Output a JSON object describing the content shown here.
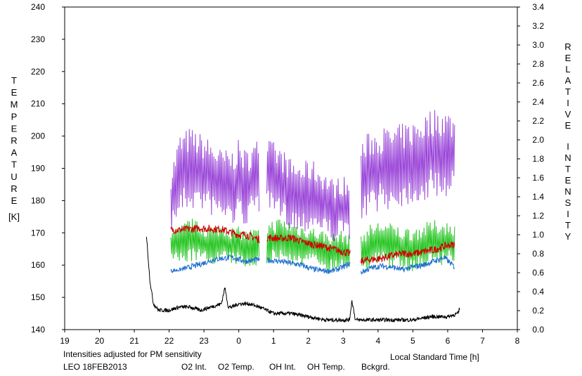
{
  "chart_data": {
    "type": "line",
    "xlabel": "Local Standard Time [h]",
    "x_ticks": [
      "19",
      "20",
      "21",
      "22",
      "23",
      "0",
      "1",
      "2",
      "3",
      "4",
      "5",
      "6",
      "7",
      "8"
    ],
    "xlim": [
      19,
      32
    ],
    "y_left": {
      "label_letters": [
        "T",
        "E",
        "M",
        "P",
        "E",
        "R",
        "A",
        "T",
        "U",
        "R",
        "E"
      ],
      "unit": "[K]",
      "ticks": [
        "140",
        "150",
        "160",
        "170",
        "180",
        "190",
        "200",
        "210",
        "220",
        "230",
        "240"
      ],
      "lim": [
        140,
        240
      ]
    },
    "y_right": {
      "label_letters_1": [
        "R",
        "E",
        "L",
        "A",
        "T",
        "I",
        "V",
        "E"
      ],
      "label_letters_2": [
        "I",
        "N",
        "T",
        "E",
        "N",
        "S",
        "I",
        "T",
        "Y"
      ],
      "ticks": [
        "0.0",
        "0.2",
        "0.4",
        "0.6",
        "0.8",
        "1.0",
        "1.2",
        "1.4",
        "1.6",
        "1.8",
        "2.0",
        "2.2",
        "2.4",
        "2.6",
        "2.8",
        "3.0",
        "3.2",
        "3.4"
      ],
      "lim": [
        0,
        3.4
      ]
    },
    "note": "Intensities adjusted for PM sensitivity",
    "station": "LEO 18FEB2013",
    "legend": [
      "O2 Int.",
      "O2 Temp.",
      "OH Int.",
      "OH Temp.",
      "Bckgrd."
    ],
    "colors": {
      "o2_int": "#1f6fd0",
      "o2_temp": "#9a45d8",
      "oh_int": "#d00000",
      "oh_temp": "#22c41e",
      "bckgrd": "#000000",
      "note": "#22c41e"
    },
    "gaps_hours": [
      [
        24.6,
        24.8
      ],
      [
        27.2,
        27.5
      ]
    ],
    "series": [
      {
        "key": "o2_temp",
        "axis": "left",
        "x": [
          22.05,
          22.3,
          22.6,
          22.9,
          23.2,
          23.5,
          23.8,
          24.0,
          24.2,
          24.6,
          24.9,
          25.2,
          25.5,
          25.8,
          26.1,
          26.4,
          26.7,
          27.0,
          27.2,
          27.5,
          27.8,
          28.1,
          28.4,
          28.7,
          29.0,
          29.3,
          29.6,
          29.9,
          30.2
        ],
        "mean": [
          180,
          188,
          190,
          189,
          187,
          185,
          184,
          186,
          184,
          188,
          187,
          185,
          182,
          181,
          182,
          180,
          177,
          178,
          177,
          185,
          189,
          190,
          190,
          191,
          192,
          193,
          195,
          195,
          194
        ],
        "amp": [
          10,
          13,
          13,
          12,
          12,
          11,
          12,
          13,
          12,
          12,
          12,
          12,
          11,
          11,
          11,
          10,
          10,
          10,
          9,
          14,
          13,
          13,
          13,
          13,
          13,
          14,
          14,
          14,
          13
        ]
      },
      {
        "key": "oh_temp",
        "axis": "left",
        "x": [
          22.05,
          22.3,
          22.6,
          22.9,
          23.2,
          23.5,
          23.8,
          24.0,
          24.2,
          24.6,
          24.9,
          25.2,
          25.5,
          25.8,
          26.1,
          26.4,
          26.7,
          27.0,
          27.2,
          27.5,
          27.8,
          28.1,
          28.4,
          28.7,
          29.0,
          29.3,
          29.6,
          29.9,
          30.2
        ],
        "mean": [
          166,
          166,
          168,
          167,
          166,
          167,
          166,
          166,
          165,
          166,
          167,
          168,
          167,
          166,
          166,
          165,
          164,
          165,
          164,
          164,
          166,
          167,
          166,
          165,
          165,
          166,
          167,
          167,
          167
        ],
        "amp": [
          5,
          6,
          7,
          6,
          6,
          6,
          6,
          6,
          6,
          6,
          7,
          7,
          7,
          7,
          6,
          6,
          6,
          6,
          5,
          6,
          7,
          7,
          7,
          7,
          7,
          7,
          7,
          7,
          6
        ]
      },
      {
        "key": "oh_int",
        "axis": "right",
        "x": [
          22.05,
          22.3,
          22.6,
          22.9,
          23.2,
          23.5,
          23.8,
          24.0,
          24.2,
          24.6,
          24.9,
          25.2,
          25.5,
          25.8,
          26.1,
          26.4,
          26.7,
          27.0,
          27.2,
          27.5,
          27.8,
          28.1,
          28.4,
          28.7,
          29.0,
          29.3,
          29.6,
          29.9,
          30.2
        ],
        "mean": [
          1.05,
          1.05,
          1.06,
          1.07,
          1.06,
          1.06,
          1.02,
          1.0,
          1.0,
          0.95,
          0.97,
          0.96,
          0.97,
          0.93,
          0.9,
          0.88,
          0.85,
          0.82,
          0.8,
          0.72,
          0.74,
          0.75,
          0.78,
          0.8,
          0.8,
          0.82,
          0.84,
          0.88,
          0.9
        ],
        "amp": [
          0.04,
          0.04,
          0.04,
          0.04,
          0.04,
          0.04,
          0.04,
          0.04,
          0.04,
          0.04,
          0.04,
          0.04,
          0.04,
          0.04,
          0.04,
          0.04,
          0.04,
          0.04,
          0.04,
          0.04,
          0.04,
          0.04,
          0.04,
          0.04,
          0.04,
          0.04,
          0.04,
          0.04,
          0.04
        ]
      },
      {
        "key": "o2_int",
        "axis": "right",
        "x": [
          22.05,
          22.3,
          22.6,
          22.9,
          23.2,
          23.5,
          23.8,
          24.0,
          24.2,
          24.6,
          24.9,
          25.2,
          25.5,
          25.8,
          26.1,
          26.4,
          26.7,
          27.0,
          27.2,
          27.5,
          27.8,
          28.1,
          28.4,
          28.7,
          29.0,
          29.3,
          29.6,
          29.9,
          30.2
        ],
        "mean": [
          0.62,
          0.63,
          0.66,
          0.69,
          0.73,
          0.75,
          0.76,
          0.74,
          0.72,
          0.74,
          0.73,
          0.72,
          0.7,
          0.68,
          0.64,
          0.62,
          0.62,
          0.66,
          0.7,
          0.6,
          0.65,
          0.67,
          0.66,
          0.63,
          0.66,
          0.68,
          0.72,
          0.76,
          0.66
        ],
        "amp": [
          0.02,
          0.02,
          0.03,
          0.03,
          0.03,
          0.03,
          0.03,
          0.03,
          0.03,
          0.03,
          0.03,
          0.03,
          0.03,
          0.03,
          0.03,
          0.03,
          0.03,
          0.03,
          0.03,
          0.03,
          0.03,
          0.03,
          0.03,
          0.03,
          0.03,
          0.03,
          0.03,
          0.03,
          0.03
        ]
      },
      {
        "key": "bckgrd",
        "axis": "left",
        "x": [
          21.35,
          21.45,
          21.55,
          21.7,
          22.0,
          22.3,
          22.6,
          22.9,
          23.2,
          23.5,
          23.6,
          23.7,
          23.8,
          24.0,
          24.3,
          24.6,
          25.0,
          25.5,
          26.0,
          26.5,
          27.0,
          27.18,
          27.25,
          27.35,
          27.7,
          28.0,
          28.5,
          29.0,
          29.5,
          30.0,
          30.3,
          30.35
        ],
        "y": [
          169,
          155,
          148,
          146,
          146,
          147,
          147,
          146,
          147,
          148,
          153,
          147,
          147,
          148,
          148,
          147,
          145,
          145,
          144,
          143,
          143,
          143,
          149,
          143,
          143,
          143,
          143,
          143,
          144,
          144,
          145,
          147
        ],
        "noise": 0.6
      }
    ]
  }
}
